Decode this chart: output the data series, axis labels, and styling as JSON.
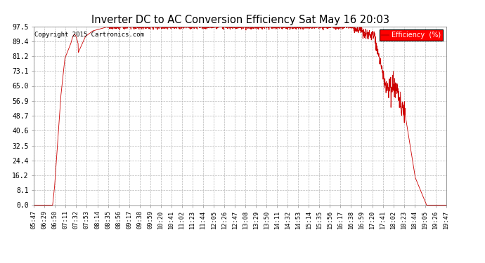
{
  "title": "Inverter DC to AC Conversion Efficiency Sat May 16 20:03",
  "copyright": "Copyright 2015 Cartronics.com",
  "legend_label": "Efficiency  (%)",
  "line_color": "#cc0000",
  "background_color": "#ffffff",
  "grid_color": "#b0b0b0",
  "yticks": [
    0.0,
    8.1,
    16.2,
    24.4,
    32.5,
    40.6,
    48.7,
    56.9,
    65.0,
    73.1,
    81.2,
    89.4,
    97.5
  ],
  "xtick_labels": [
    "05:47",
    "06:29",
    "06:50",
    "07:11",
    "07:32",
    "07:53",
    "08:14",
    "08:35",
    "08:56",
    "09:17",
    "09:38",
    "09:59",
    "10:20",
    "10:41",
    "11:02",
    "11:23",
    "11:44",
    "12:05",
    "12:26",
    "12:47",
    "13:08",
    "13:29",
    "13:50",
    "14:11",
    "14:32",
    "14:53",
    "15:14",
    "15:35",
    "15:56",
    "16:17",
    "16:38",
    "16:59",
    "17:20",
    "17:41",
    "18:02",
    "18:23",
    "18:44",
    "19:05",
    "19:26",
    "19:47"
  ],
  "ymin": 0.0,
  "ymax": 97.5,
  "n_xticks": 40
}
